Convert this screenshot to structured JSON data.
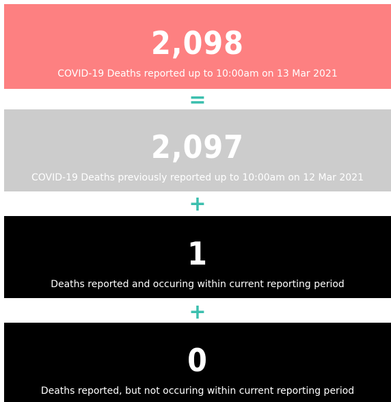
{
  "cards": [
    {
      "value": "2,098",
      "label": "COVID-19 Deaths reported up to 10:00am on 13 Mar 2021"
    },
    {
      "value": "2,097",
      "label": "COVID-19 Deaths previously reported up to 10:00am on 12 Mar 2021"
    },
    {
      "value": "1",
      "label": "Deaths reported and occuring within current reporting period"
    },
    {
      "value": "0",
      "label": "Deaths reported, but not occuring within current reporting period"
    }
  ],
  "operators": [
    "=",
    "+",
    "+"
  ]
}
